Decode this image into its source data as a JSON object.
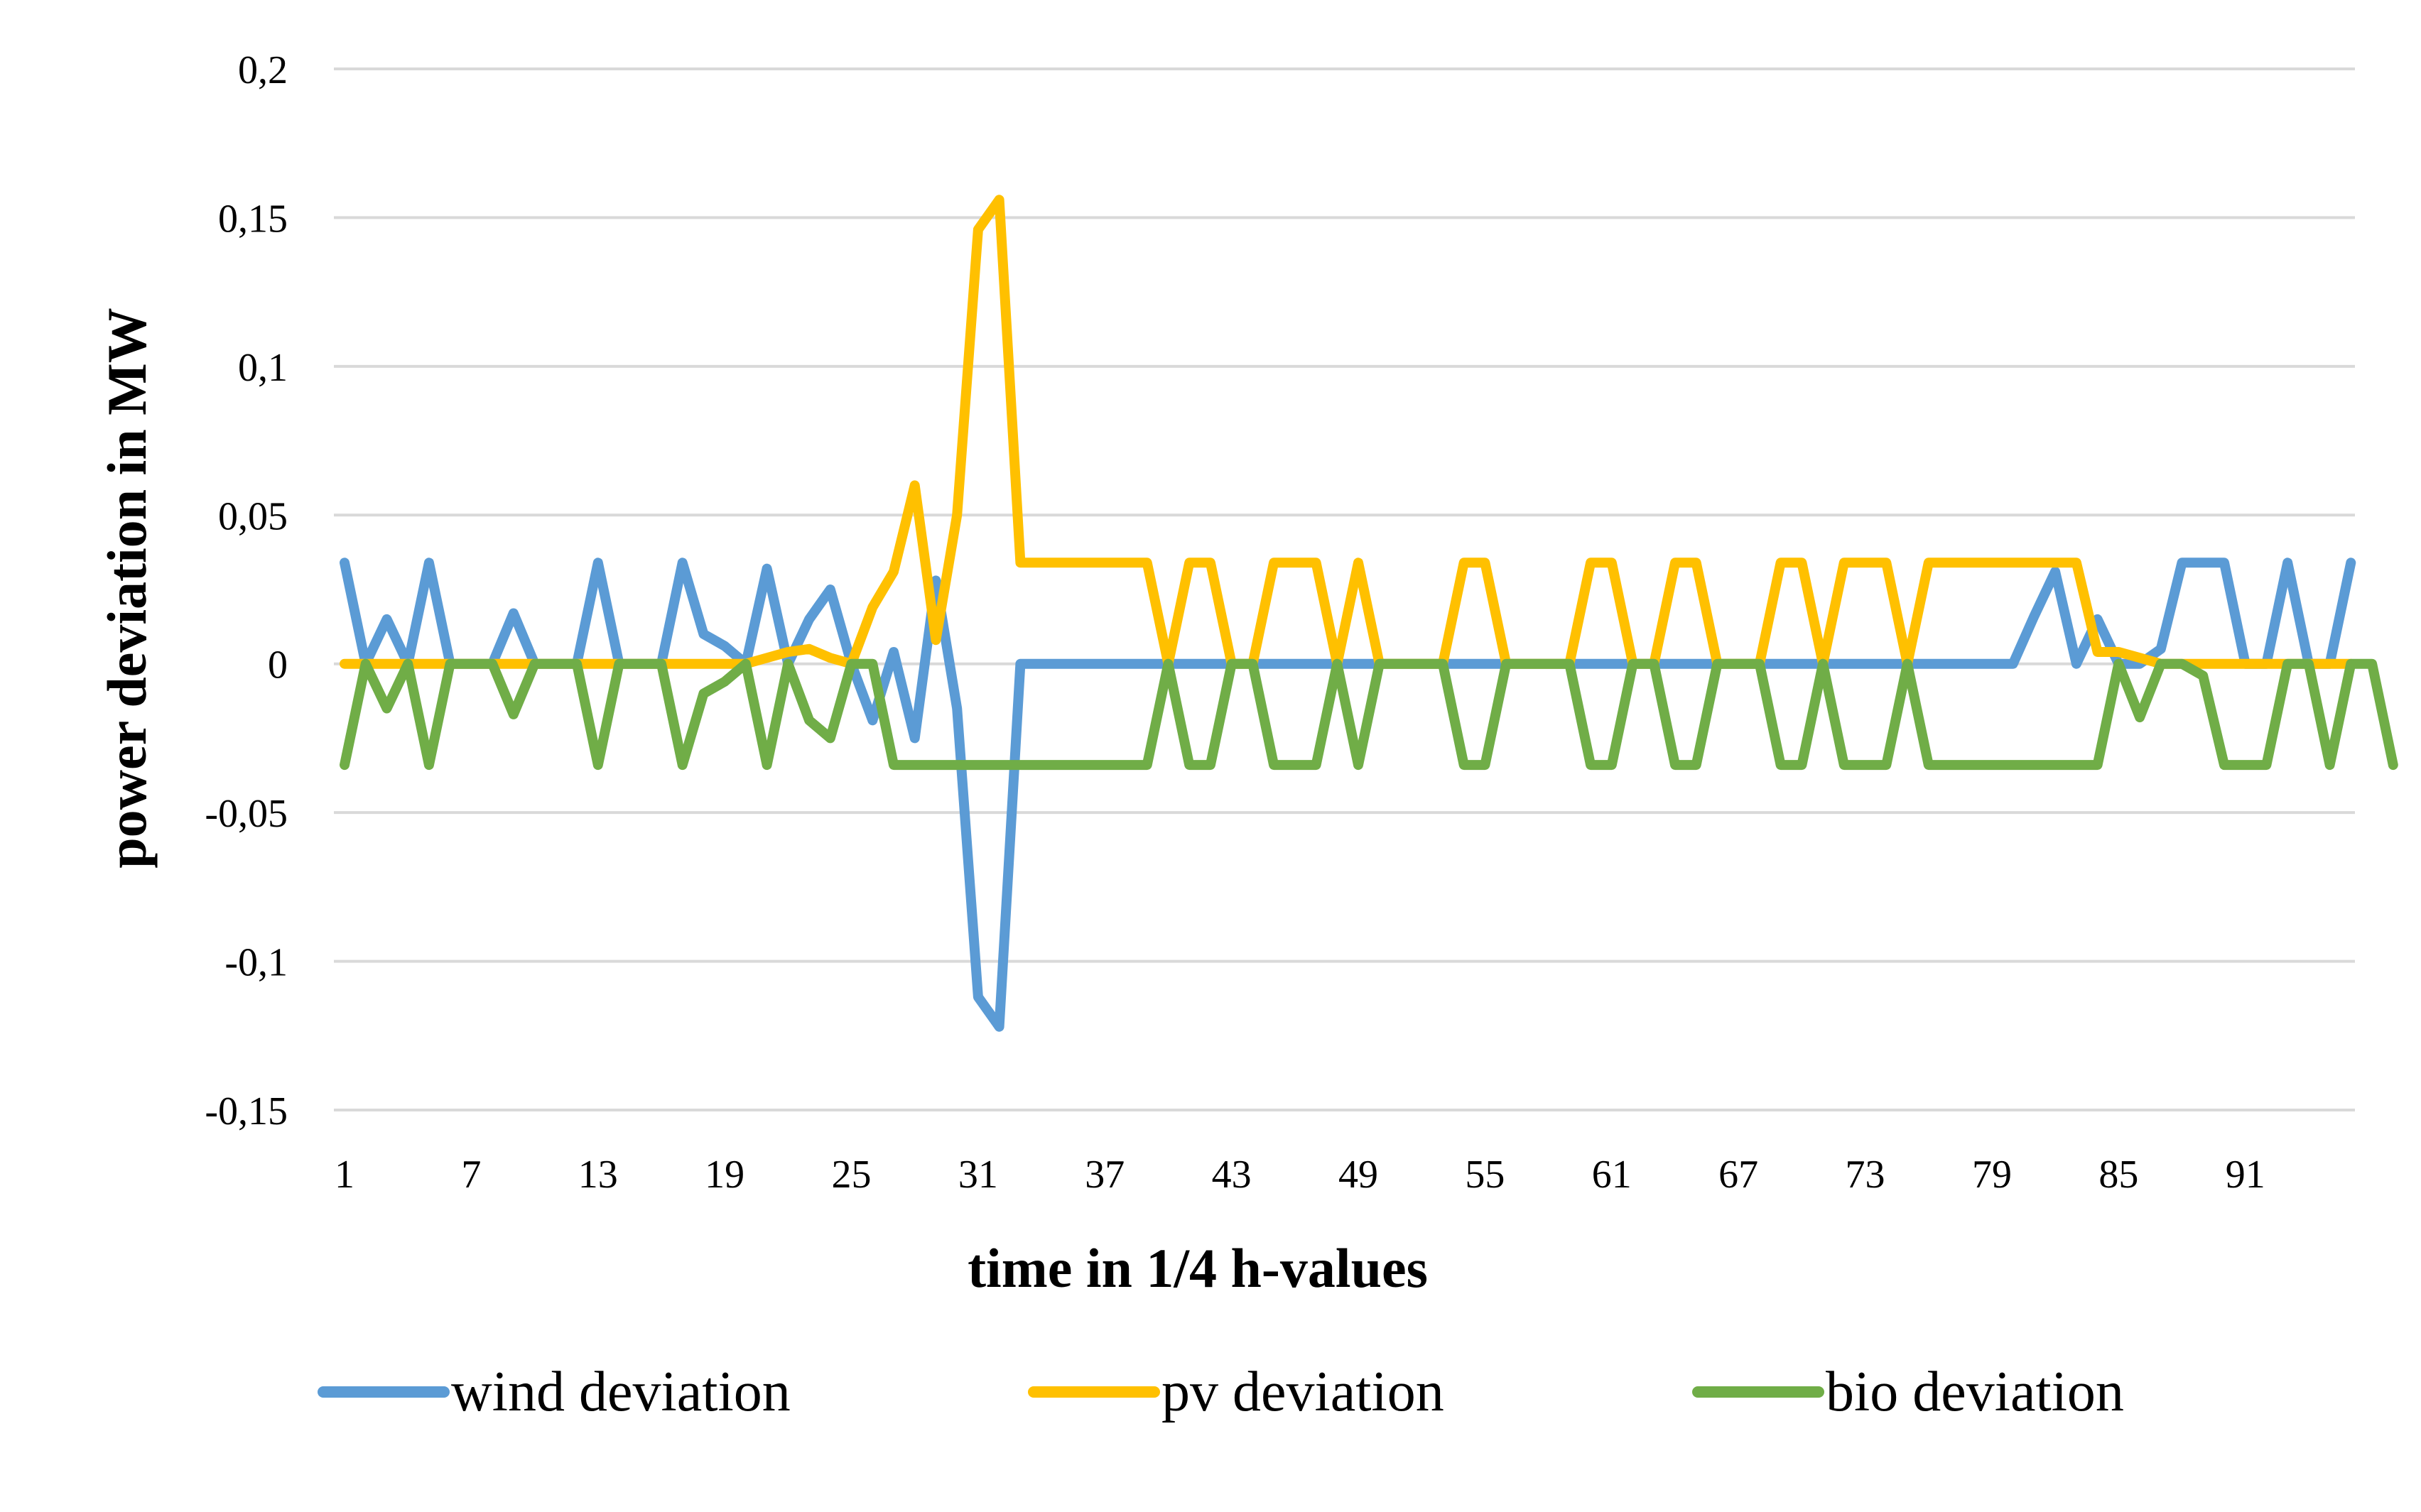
{
  "chart_data": {
    "type": "line",
    "title": "",
    "xlabel": "time in 1/4 h-values",
    "ylabel": "power deviation in MW",
    "ylim": [
      -0.15,
      0.2
    ],
    "yticks": [
      -0.15,
      -0.1,
      -0.05,
      0,
      0.05,
      0.1,
      0.15,
      0.2
    ],
    "ytick_labels": [
      "-0,15",
      "-0,1",
      "-0,05",
      "0",
      "0,05",
      "0,1",
      "0,15",
      "0,2"
    ],
    "x_range": [
      1,
      96
    ],
    "xtick_labels": [
      "1",
      "7",
      "13",
      "19",
      "25",
      "31",
      "37",
      "43",
      "49",
      "55",
      "61",
      "67",
      "73",
      "79",
      "85",
      "91"
    ],
    "grid": true,
    "legend_position": "bottom",
    "series": [
      {
        "name": "wind deviation",
        "color": "#5B9BD5",
        "values": [
          0.034,
          0,
          0.015,
          0,
          0.034,
          0,
          0,
          0,
          0.017,
          0,
          0,
          0,
          0.034,
          0,
          0,
          0,
          0.034,
          0.01,
          0.006,
          0,
          0.032,
          0,
          0.015,
          0.025,
          0,
          -0.019,
          0.004,
          -0.025,
          0.028,
          -0.015,
          -0.112,
          -0.122,
          0,
          0,
          0,
          0,
          0,
          0,
          0,
          0,
          0,
          0,
          0,
          0,
          0,
          0,
          0,
          0,
          0,
          0,
          0,
          0,
          0,
          0,
          0,
          0,
          0,
          0,
          0,
          0,
          0,
          0,
          0,
          0,
          0,
          0,
          0,
          0,
          0,
          0,
          0,
          0,
          0,
          0,
          0,
          0,
          0,
          0,
          0,
          0,
          0.016,
          0.031,
          0,
          0.015,
          0,
          0,
          0.005,
          0.034,
          0.034,
          0.034,
          0,
          0,
          0.034,
          0,
          0,
          0.034
        ]
      },
      {
        "name": "pv deviation",
        "color": "#FFC000",
        "values": [
          0,
          0,
          0,
          0,
          0,
          0,
          0,
          0,
          0,
          0,
          0,
          0,
          0,
          0,
          0,
          0,
          0,
          0,
          0,
          0,
          0.002,
          0.004,
          0.005,
          0.002,
          0,
          0.019,
          0.031,
          0.06,
          0.008,
          0.05,
          0.146,
          0.156,
          0.034,
          0.034,
          0.034,
          0.034,
          0.034,
          0.034,
          0.034,
          0,
          0.034,
          0.034,
          0,
          0,
          0.034,
          0.034,
          0.034,
          0,
          0.034,
          0,
          0,
          0,
          0,
          0.034,
          0.034,
          0,
          0,
          0,
          0,
          0.034,
          0.034,
          0,
          0,
          0.034,
          0.034,
          0,
          0,
          0,
          0.034,
          0.034,
          0,
          0.034,
          0.034,
          0.034,
          0,
          0.034,
          0.034,
          0.034,
          0.034,
          0.034,
          0.034,
          0.034,
          0.034,
          0.004,
          0.004,
          0.002,
          0,
          0,
          0,
          0,
          0,
          0,
          0,
          0,
          0,
          0
        ]
      },
      {
        "name": "bio deviation",
        "color": "#70AD47",
        "values": [
          -0.034,
          0,
          -0.015,
          0,
          -0.034,
          0,
          0,
          0,
          -0.017,
          0,
          0,
          0,
          -0.034,
          0,
          0,
          0,
          -0.034,
          -0.01,
          -0.006,
          0,
          -0.034,
          0,
          -0.019,
          -0.025,
          0,
          0,
          -0.034,
          -0.034,
          -0.034,
          -0.034,
          -0.034,
          -0.034,
          -0.034,
          -0.034,
          -0.034,
          -0.034,
          -0.034,
          -0.034,
          -0.034,
          0,
          -0.034,
          -0.034,
          0,
          0,
          -0.034,
          -0.034,
          -0.034,
          0,
          -0.034,
          0,
          0,
          0,
          0,
          -0.034,
          -0.034,
          0,
          0,
          0,
          0,
          -0.034,
          -0.034,
          0,
          0,
          -0.034,
          -0.034,
          0,
          0,
          0,
          -0.034,
          -0.034,
          0,
          -0.034,
          -0.034,
          -0.034,
          0,
          -0.034,
          -0.034,
          -0.034,
          -0.034,
          -0.034,
          -0.034,
          -0.034,
          -0.034,
          -0.034,
          0,
          -0.018,
          0,
          0,
          -0.004,
          -0.034,
          -0.034,
          -0.034,
          0,
          0,
          -0.034,
          0,
          0,
          -0.034
        ]
      }
    ]
  }
}
